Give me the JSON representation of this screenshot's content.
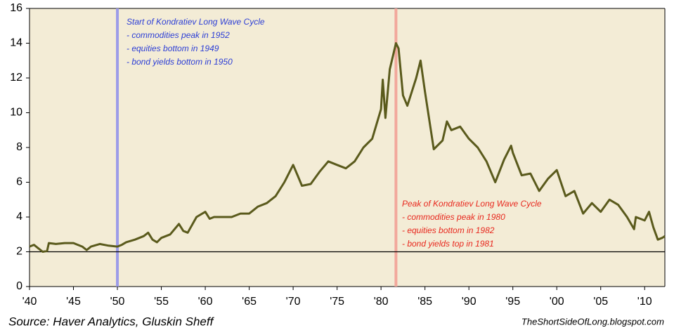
{
  "chart_data": {
    "type": "line",
    "x": [
      1940,
      1940.5,
      1941,
      1941.5,
      1942,
      1942.2,
      1943,
      1944,
      1945,
      1946,
      1946.5,
      1947,
      1948,
      1949,
      1950,
      1950.5,
      1951,
      1952,
      1953,
      1953.5,
      1954,
      1954.5,
      1955,
      1956,
      1957,
      1957.5,
      1958,
      1959,
      1960,
      1960.5,
      1961,
      1962,
      1963,
      1964,
      1965,
      1966,
      1967,
      1968,
      1969,
      1970,
      1970.5,
      1971,
      1972,
      1973,
      1974,
      1975,
      1976,
      1977,
      1978,
      1979,
      1980,
      1980.2,
      1980.5,
      1981,
      1981.7,
      1982,
      1982.5,
      1983,
      1984,
      1984.5,
      1985,
      1986,
      1987,
      1987.5,
      1988,
      1989,
      1990,
      1991,
      1992,
      1993,
      1994,
      1994.8,
      1995,
      1996,
      1997,
      1998,
      1999,
      2000,
      2001,
      2002,
      2003,
      2004,
      2005,
      2006,
      2007,
      2008,
      2008.8,
      2009,
      2010,
      2010.5,
      2011,
      2011.5,
      2012,
      2012.3
    ],
    "values": [
      2.3,
      2.4,
      2.2,
      2.0,
      2.05,
      2.5,
      2.45,
      2.5,
      2.5,
      2.3,
      2.1,
      2.3,
      2.45,
      2.35,
      2.3,
      2.4,
      2.55,
      2.7,
      2.9,
      3.1,
      2.7,
      2.55,
      2.8,
      3.0,
      3.6,
      3.2,
      3.1,
      4.0,
      4.3,
      3.9,
      4.0,
      4.0,
      4.0,
      4.2,
      4.2,
      4.6,
      4.8,
      5.2,
      6.0,
      7.0,
      6.4,
      5.8,
      5.9,
      6.6,
      7.2,
      7.0,
      6.8,
      7.2,
      8.0,
      8.5,
      10.2,
      11.9,
      9.7,
      12.5,
      14.0,
      13.7,
      11.0,
      10.4,
      12.0,
      13.0,
      11.2,
      7.9,
      8.4,
      9.5,
      9.0,
      9.2,
      8.5,
      8.0,
      7.2,
      6.0,
      7.3,
      8.1,
      7.7,
      6.4,
      6.5,
      5.5,
      6.2,
      6.7,
      5.2,
      5.5,
      4.2,
      4.8,
      4.3,
      5.0,
      4.7,
      4.0,
      3.3,
      4.0,
      3.8,
      4.3,
      3.4,
      2.7,
      2.8,
      2.9
    ],
    "color": "#5a5a1c",
    "xlim": [
      1940,
      2012.3
    ],
    "ylim": [
      0,
      16
    ],
    "yticks": [
      0,
      2,
      4,
      6,
      8,
      10,
      12,
      14,
      16
    ],
    "xticks": [
      {
        "value": 1940,
        "label": "'40"
      },
      {
        "value": 1945,
        "label": "'45"
      },
      {
        "value": 1950,
        "label": "'50"
      },
      {
        "value": 1955,
        "label": "'55"
      },
      {
        "value": 1960,
        "label": "'60"
      },
      {
        "value": 1965,
        "label": "'65"
      },
      {
        "value": 1970,
        "label": "'70"
      },
      {
        "value": 1975,
        "label": "'75"
      },
      {
        "value": 1980,
        "label": "'80"
      },
      {
        "value": 1985,
        "label": "'85"
      },
      {
        "value": 1990,
        "label": "'90"
      },
      {
        "value": 1995,
        "label": "'95"
      },
      {
        "value": 2000,
        "label": "'00"
      },
      {
        "value": 2005,
        "label": "'05"
      },
      {
        "value": 2010,
        "label": "'10"
      }
    ],
    "reference_line": 2,
    "vlines": [
      {
        "value": 1950,
        "color": "#9c9ce8"
      },
      {
        "value": 1981.7,
        "color": "#f2a89c"
      }
    ],
    "annotations": [
      {
        "color": "#2c3ed6",
        "lines": [
          "Start of Kondratiev Long Wave Cycle",
          "- commodities peak in 1952",
          "- equities bottom in 1949",
          "- bond yields bottom in 1950"
        ]
      },
      {
        "color": "#e8281e",
        "lines": [
          "Peak of Kondratiev Long Wave Cycle",
          "- commodities peak in 1980",
          "- equities bottom in 1982",
          "- bond yields top in 1981"
        ]
      }
    ],
    "source": "Source: Haver Analytics, Gluskin Sheff",
    "credit": "TheShortSideOfLong.blogspot.com"
  }
}
